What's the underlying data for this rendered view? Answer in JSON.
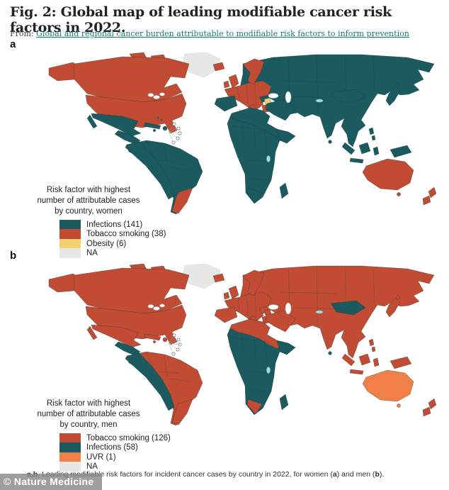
{
  "figure": {
    "title": "Fig. 2: Global map of leading modifiable cancer risk factors in 2022.",
    "source_prefix": "From: ",
    "source_link": "Global and regional cancer burden attributable to modifiable risk factors to inform prevention",
    "caption": {
      "b1": "a,b,",
      "t1": " Leading modifiable risk factors for incident cancer cases by country in 2022, for women (",
      "b2": "a",
      "t2": ") and men (",
      "b3": "b",
      "t3": ")."
    },
    "watermark": "© Nature Medicine"
  },
  "palette": {
    "infections": "#1B5A5F",
    "tobacco": "#C24B33",
    "obesity": "#F2D170",
    "uvr": "#F08048",
    "na": "#E7E7E5",
    "border": "#17343C",
    "lake": "#9ADFE2"
  },
  "chart_data": [
    {
      "type": "choropleth-map",
      "title": "Risk factor with highest number of attributable cases by country, women",
      "categories": [
        "Infections",
        "Tobacco smoking",
        "Obesity",
        "NA"
      ],
      "values": [
        141,
        38,
        6,
        null
      ]
    },
    {
      "type": "choropleth-map",
      "title": "Risk factor with highest number of attributable cases by country, men",
      "categories": [
        "Tobacco smoking",
        "Infections",
        "UVR",
        "NA"
      ],
      "values": [
        126,
        58,
        1,
        null
      ]
    }
  ],
  "panels": [
    {
      "id": "a",
      "label": "a",
      "legend_title_lines": [
        "Risk factor with highest",
        "number of attributable cases",
        "by country, women"
      ],
      "legend": [
        {
          "key": "infections",
          "label": "Infections (141)"
        },
        {
          "key": "tobacco",
          "label": "Tobacco smoking (38)"
        },
        {
          "key": "obesity",
          "label": "Obesity (6)"
        },
        {
          "key": "na",
          "label": "NA"
        }
      ],
      "regions": {
        "greenland": "na",
        "iceland": "tobacco",
        "alaska": "tobacco",
        "arctic_islands": "tobacco",
        "canada": "tobacco",
        "usa": "tobacco",
        "mexico": "infections",
        "baja": "infections",
        "central_america": "infections",
        "cuba": "infections",
        "hispaniola": "infections",
        "jamaica": "infections",
        "caribbean_islands": "infections",
        "south_america": "infections",
        "andes": "infections",
        "argentina": "tobacco",
        "uk": "tobacco",
        "ireland": "tobacco",
        "scandinavia": "tobacco",
        "eurasia": "infections",
        "europe_west": "tobacco",
        "italy": "tobacco",
        "greece": "tobacco",
        "iberia": "infections",
        "syria": "obesity",
        "arabia": "infections",
        "africa": "infections",
        "north_africa": "infections",
        "horn": "infections",
        "south_africa_patch": "infections",
        "madagascar": "infections",
        "mongolia": "infections",
        "japan": "infections",
        "hokkaido": "infections",
        "philippines": "infections",
        "sumatra": "infections",
        "borneo": "infections",
        "java": "infections",
        "sulawesi": "infections",
        "new_guinea": "infections",
        "sri_lanka": "infections",
        "australia": "tobacco",
        "tasmania": "tobacco",
        "nz_north": "tobacco",
        "nz_south": "tobacco"
      }
    },
    {
      "id": "b",
      "label": "b",
      "legend_title_lines": [
        "Risk factor with highest",
        "number of attributable cases",
        "by country, men"
      ],
      "legend": [
        {
          "key": "tobacco",
          "label": "Tobacco smoking (126)"
        },
        {
          "key": "infections",
          "label": "Infections (58)"
        },
        {
          "key": "uvr",
          "label": "UVR (1)"
        },
        {
          "key": "na",
          "label": "NA"
        }
      ],
      "regions": {
        "greenland": "na",
        "iceland": "tobacco",
        "alaska": "tobacco",
        "arctic_islands": "tobacco",
        "canada": "tobacco",
        "usa": "tobacco",
        "mexico": "tobacco",
        "baja": "tobacco",
        "central_america": "infections",
        "cuba": "tobacco",
        "hispaniola": "tobacco",
        "jamaica": "tobacco",
        "caribbean_islands": "tobacco",
        "south_america": "tobacco",
        "andes": "infections",
        "argentina": "tobacco",
        "uk": "tobacco",
        "ireland": "tobacco",
        "scandinavia": "tobacco",
        "eurasia": "tobacco",
        "europe_west": "tobacco",
        "italy": "tobacco",
        "greece": "tobacco",
        "iberia": "tobacco",
        "syria": "tobacco",
        "arabia": "tobacco",
        "africa": "infections",
        "north_africa": "tobacco",
        "horn": "infections",
        "south_africa_patch": "tobacco",
        "madagascar": "infections",
        "mongolia": "infections",
        "japan": "tobacco",
        "hokkaido": "tobacco",
        "philippines": "tobacco",
        "sumatra": "tobacco",
        "borneo": "tobacco",
        "java": "tobacco",
        "sulawesi": "tobacco",
        "new_guinea": "tobacco",
        "sri_lanka": "infections",
        "australia": "uvr",
        "tasmania": "uvr",
        "nz_north": "tobacco",
        "nz_south": "tobacco"
      }
    }
  ]
}
